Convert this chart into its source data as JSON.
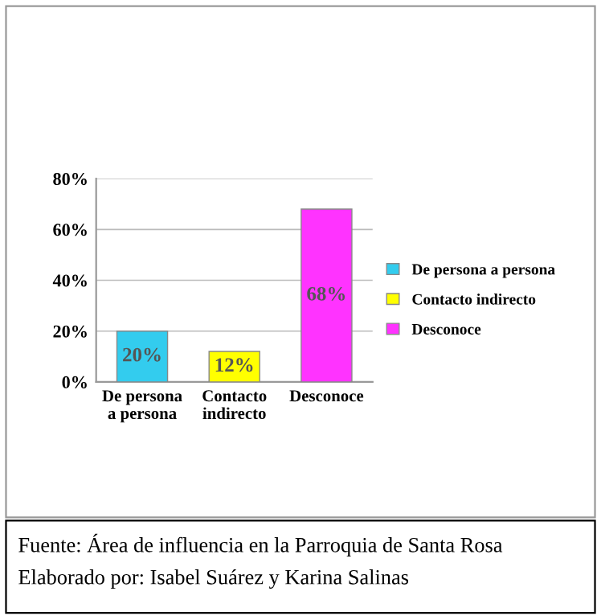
{
  "chart_data": {
    "type": "bar",
    "categories": [
      "De persona a persona",
      "Contacto indirecto",
      "Desconoce"
    ],
    "series": [
      {
        "name": "De persona a persona",
        "color": "#33ccee",
        "values": [
          20,
          null,
          null
        ],
        "value_labels": [
          "20%",
          null,
          null
        ]
      },
      {
        "name": "Contacto indirecto",
        "color": "#ffff00",
        "values": [
          null,
          12,
          null
        ],
        "value_labels": [
          null,
          "12%",
          null
        ]
      },
      {
        "name": "Desconoce",
        "color": "#ff33ff",
        "values": [
          null,
          null,
          68
        ],
        "value_labels": [
          null,
          null,
          "68%"
        ]
      }
    ],
    "ylim": [
      0,
      80
    ],
    "yticks": [
      {
        "value": 0,
        "label": "0%"
      },
      {
        "value": 20,
        "label": "20%"
      },
      {
        "value": 40,
        "label": "40%"
      },
      {
        "value": 60,
        "label": "60%"
      },
      {
        "value": 80,
        "label": "80%"
      }
    ],
    "grid": "y",
    "legend": "right",
    "annotations": [
      "Fuente: Área de influencia en la Parroquia de Santa Rosa",
      "Elaborado por: Isabel Suárez y Karina Salinas"
    ]
  }
}
